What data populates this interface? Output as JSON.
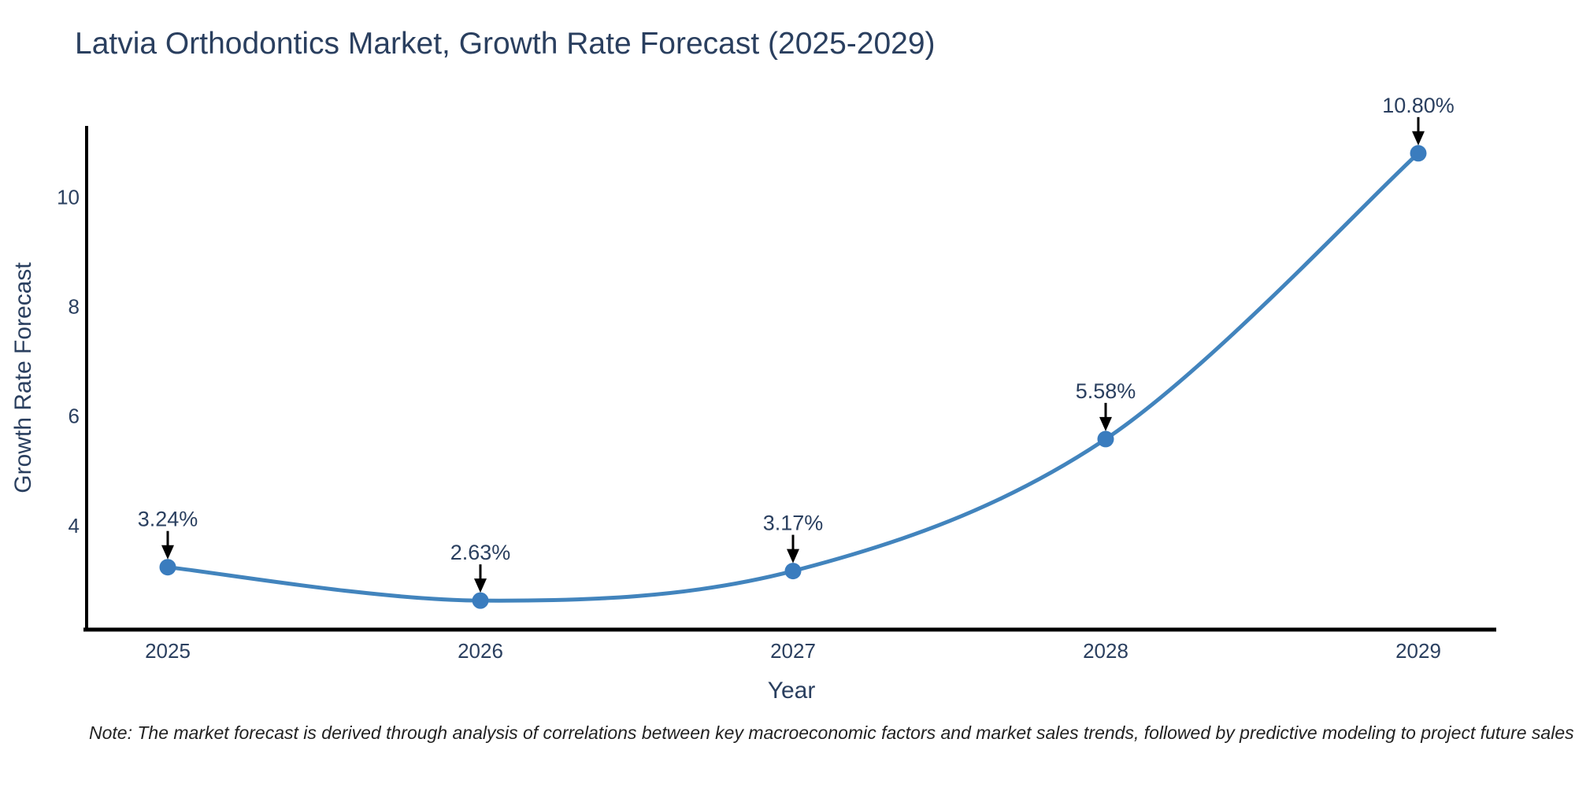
{
  "page": {
    "background": "#ffffff"
  },
  "chart_data": {
    "type": "line",
    "title": "Latvia Orthodontics Market, Growth Rate Forecast (2025-2029)",
    "xlabel": "Year",
    "ylabel": "Growth Rate Forecast",
    "categories": [
      "2025",
      "2026",
      "2027",
      "2028",
      "2029"
    ],
    "series": [
      {
        "name": "Growth Rate Forecast",
        "values": [
          3.24,
          2.63,
          3.17,
          5.58,
          10.8
        ]
      }
    ],
    "point_labels": [
      "3.24%",
      "2.63%",
      "3.17%",
      "5.58%",
      "10.80%"
    ],
    "y_ticks": [
      4,
      6,
      8,
      10
    ],
    "ylim": [
      2.1,
      11.3
    ],
    "grid": false,
    "legend_position": "none",
    "line_color": "#4284bd",
    "marker_color": "#3a7cbe",
    "axis_color": "#000000",
    "text_color": "#2a3f5f",
    "annotation_arrow_color": "#000000"
  },
  "note": {
    "text": "Note: The market forecast is derived through analysis of correlations between key macroeconomic factors and market sales trends, followed by predictive modeling to project future sales"
  }
}
